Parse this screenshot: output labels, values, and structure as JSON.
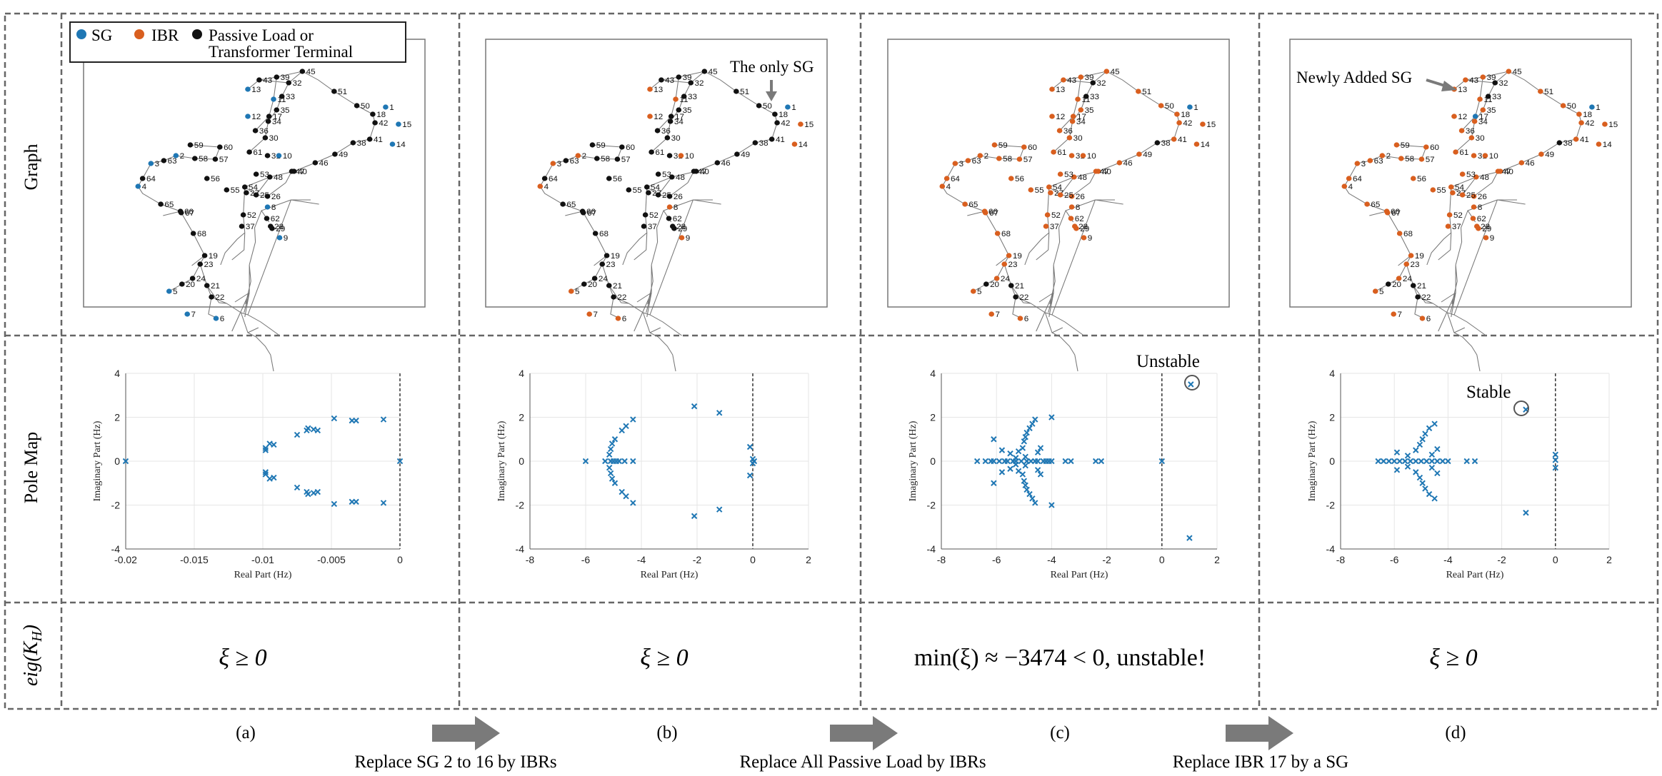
{
  "colors": {
    "sg": "#1f77b4",
    "ibr": "#d95f1f",
    "passive": "#111111",
    "pole": "#1f77b4",
    "arrow": "#7a7a7a",
    "grid": "#e6e6e6"
  },
  "legend": {
    "sg": "SG",
    "ibr": "IBR",
    "passive_line1": "Passive Load or",
    "passive_line2": "Transformer Terminal"
  },
  "row_labels": {
    "graph": "Graph",
    "pole_map": "Pole Map",
    "eig": "eig(K",
    "eig_sub": "H",
    "eig_close": ")"
  },
  "axis": {
    "xlabel": "Real Part (Hz)",
    "ylabel": "Imaginary Part (Hz)"
  },
  "panels": [
    {
      "letter": "(a)",
      "condition": "ξ ≥ 0",
      "annotation": "",
      "callout": ""
    },
    {
      "letter": "(b)",
      "condition": "ξ ≥ 0",
      "annotation": "",
      "callout": "The only SG"
    },
    {
      "letter": "(c)",
      "condition": "min(ξ) ≈ −3474 < 0, unstable!",
      "annotation": "Unstable",
      "callout": ""
    },
    {
      "letter": "(d)",
      "condition": "ξ ≥ 0",
      "annotation": "Stable",
      "callout": "Newly Added SG"
    }
  ],
  "transitions": [
    "Replace SG 2 to 16 by IBRs",
    "Replace All Passive Load by IBRs",
    "Replace IBR 17 by a SG"
  ],
  "chart_data": [
    {
      "type": "scatter",
      "xlim": [
        -0.02,
        0
      ],
      "ylim": [
        -4,
        4
      ],
      "xticks": [
        "-0.02",
        "-0.015",
        "-0.01",
        "-0.005",
        "0"
      ],
      "yticks": [
        "-4",
        "-2",
        "0",
        "2",
        "4"
      ],
      "points": [
        [
          -0.02,
          0
        ],
        [
          0,
          0
        ],
        [
          -0.0098,
          0.5
        ],
        [
          -0.0098,
          0.6
        ],
        [
          -0.0095,
          0.8
        ],
        [
          -0.0092,
          0.75
        ],
        [
          -0.0075,
          1.2
        ],
        [
          -0.0068,
          1.4
        ],
        [
          -0.0067,
          1.5
        ],
        [
          -0.0063,
          1.45
        ],
        [
          -0.006,
          1.4
        ],
        [
          -0.0048,
          1.95
        ],
        [
          -0.0035,
          1.85
        ],
        [
          -0.0032,
          1.85
        ],
        [
          -0.0012,
          1.9
        ],
        [
          -0.0098,
          -0.5
        ],
        [
          -0.0098,
          -0.6
        ],
        [
          -0.0095,
          -0.8
        ],
        [
          -0.0092,
          -0.75
        ],
        [
          -0.0075,
          -1.2
        ],
        [
          -0.0068,
          -1.4
        ],
        [
          -0.0067,
          -1.5
        ],
        [
          -0.0063,
          -1.45
        ],
        [
          -0.006,
          -1.4
        ],
        [
          -0.0048,
          -1.95
        ],
        [
          -0.0035,
          -1.85
        ],
        [
          -0.0032,
          -1.85
        ],
        [
          -0.0012,
          -1.9
        ]
      ]
    },
    {
      "type": "scatter",
      "xlim": [
        -8,
        2
      ],
      "ylim": [
        -4,
        4
      ],
      "xticks": [
        "-8",
        "-6",
        "-4",
        "-2",
        "0",
        "2"
      ],
      "yticks": [
        "-4",
        "-2",
        "0",
        "2",
        "4"
      ],
      "points": [
        [
          -6,
          0
        ],
        [
          -5.3,
          0
        ],
        [
          -5.1,
          0
        ],
        [
          -5,
          0
        ],
        [
          -4.9,
          0
        ],
        [
          -4.8,
          0
        ],
        [
          -4.6,
          0
        ],
        [
          -4.3,
          0
        ],
        [
          -5.15,
          0.3
        ],
        [
          -5.1,
          0.55
        ],
        [
          -5.05,
          0.8
        ],
        [
          -4.95,
          1.0
        ],
        [
          -4.7,
          1.4
        ],
        [
          -4.55,
          1.6
        ],
        [
          -4.3,
          1.9
        ],
        [
          -5.15,
          -0.3
        ],
        [
          -5.1,
          -0.55
        ],
        [
          -5.05,
          -0.8
        ],
        [
          -4.95,
          -1.0
        ],
        [
          -4.7,
          -1.4
        ],
        [
          -4.55,
          -1.6
        ],
        [
          -4.3,
          -1.9
        ],
        [
          -2.1,
          2.5
        ],
        [
          -1.2,
          2.2
        ],
        [
          -2.1,
          -2.5
        ],
        [
          -1.2,
          -2.2
        ],
        [
          -0.1,
          0.65
        ],
        [
          -0.1,
          -0.65
        ],
        [
          0,
          0.1
        ],
        [
          0,
          -0.1
        ],
        [
          0.05,
          0
        ]
      ]
    },
    {
      "type": "scatter",
      "xlim": [
        -8,
        2
      ],
      "ylim": [
        -4,
        4
      ],
      "xticks": [
        "-8",
        "-6",
        "-4",
        "-2",
        "0",
        "2"
      ],
      "yticks": [
        "-4",
        "-2",
        "0",
        "2",
        "4"
      ],
      "points": [
        [
          -6.7,
          0
        ],
        [
          -6.4,
          0
        ],
        [
          -6.2,
          0
        ],
        [
          -6.1,
          0
        ],
        [
          -5.9,
          0
        ],
        [
          -5.7,
          0
        ],
        [
          -5.6,
          0
        ],
        [
          -5.4,
          0
        ],
        [
          -5.3,
          0
        ],
        [
          -5.1,
          0
        ],
        [
          -4.9,
          0
        ],
        [
          -4.75,
          0
        ],
        [
          -4.6,
          0
        ],
        [
          -4.5,
          0
        ],
        [
          -4.3,
          0
        ],
        [
          -4.2,
          0
        ],
        [
          -4.1,
          0
        ],
        [
          -4.0,
          0
        ],
        [
          -3.5,
          0
        ],
        [
          -3.3,
          0
        ],
        [
          -2.4,
          0
        ],
        [
          -2.2,
          0
        ],
        [
          0,
          0
        ],
        [
          -6.1,
          1.0
        ],
        [
          -6.1,
          -1.0
        ],
        [
          -5.8,
          0.5
        ],
        [
          -5.8,
          -0.5
        ],
        [
          -5.5,
          0.35
        ],
        [
          -5.5,
          -0.35
        ],
        [
          -5.2,
          0.45
        ],
        [
          -5.2,
          -0.45
        ],
        [
          -5.3,
          0.15
        ],
        [
          -5.3,
          -0.15
        ],
        [
          -4.95,
          0.2
        ],
        [
          -4.95,
          -0.2
        ],
        [
          -5.05,
          0.6
        ],
        [
          -5.05,
          -0.6
        ],
        [
          -5.0,
          0.9
        ],
        [
          -5.0,
          -0.9
        ],
        [
          -4.95,
          1.1
        ],
        [
          -4.95,
          -1.1
        ],
        [
          -4.9,
          1.3
        ],
        [
          -4.9,
          -1.3
        ],
        [
          -4.8,
          1.5
        ],
        [
          -4.8,
          -1.5
        ],
        [
          -4.7,
          1.7
        ],
        [
          -4.7,
          -1.7
        ],
        [
          -4.6,
          1.9
        ],
        [
          -4.6,
          -1.9
        ],
        [
          -4.5,
          0.4
        ],
        [
          -4.5,
          -0.4
        ],
        [
          -4.4,
          0.6
        ],
        [
          -4.4,
          -0.6
        ],
        [
          -4.0,
          2.0
        ],
        [
          -4.0,
          -2.0
        ],
        [
          1.0,
          -3.5
        ],
        [
          1.05,
          3.5
        ]
      ]
    },
    {
      "type": "scatter",
      "xlim": [
        -8,
        2
      ],
      "ylim": [
        -4,
        4
      ],
      "xticks": [
        "-8",
        "-6",
        "-4",
        "-2",
        "0",
        "2"
      ],
      "yticks": [
        "-4",
        "-2",
        "0",
        "2",
        "4"
      ],
      "points": [
        [
          -6.6,
          0
        ],
        [
          -6.4,
          0
        ],
        [
          -6.2,
          0
        ],
        [
          -6.0,
          0
        ],
        [
          -5.8,
          0
        ],
        [
          -5.6,
          0
        ],
        [
          -5.4,
          0
        ],
        [
          -5.2,
          0
        ],
        [
          -5.0,
          0
        ],
        [
          -4.8,
          0
        ],
        [
          -4.6,
          0
        ],
        [
          -4.4,
          0
        ],
        [
          -4.2,
          0
        ],
        [
          -4.0,
          0
        ],
        [
          -3.3,
          0
        ],
        [
          -3.0,
          0
        ],
        [
          -5.9,
          0.4
        ],
        [
          -5.9,
          -0.4
        ],
        [
          -5.5,
          0.25
        ],
        [
          -5.5,
          -0.25
        ],
        [
          -5.2,
          0.5
        ],
        [
          -5.2,
          -0.5
        ],
        [
          -5.05,
          0.75
        ],
        [
          -5.05,
          -0.75
        ],
        [
          -4.95,
          1.0
        ],
        [
          -4.95,
          -1.0
        ],
        [
          -4.85,
          1.25
        ],
        [
          -4.85,
          -1.25
        ],
        [
          -4.7,
          1.5
        ],
        [
          -4.7,
          -1.5
        ],
        [
          -4.5,
          1.7
        ],
        [
          -4.5,
          -1.7
        ],
        [
          -4.6,
          0.3
        ],
        [
          -4.6,
          -0.3
        ],
        [
          -4.4,
          0.55
        ],
        [
          -4.4,
          -0.55
        ],
        [
          -1.1,
          2.35
        ],
        [
          -1.1,
          -2.35
        ],
        [
          0,
          0.3
        ],
        [
          0,
          -0.3
        ],
        [
          0,
          0.05
        ]
      ]
    }
  ]
}
